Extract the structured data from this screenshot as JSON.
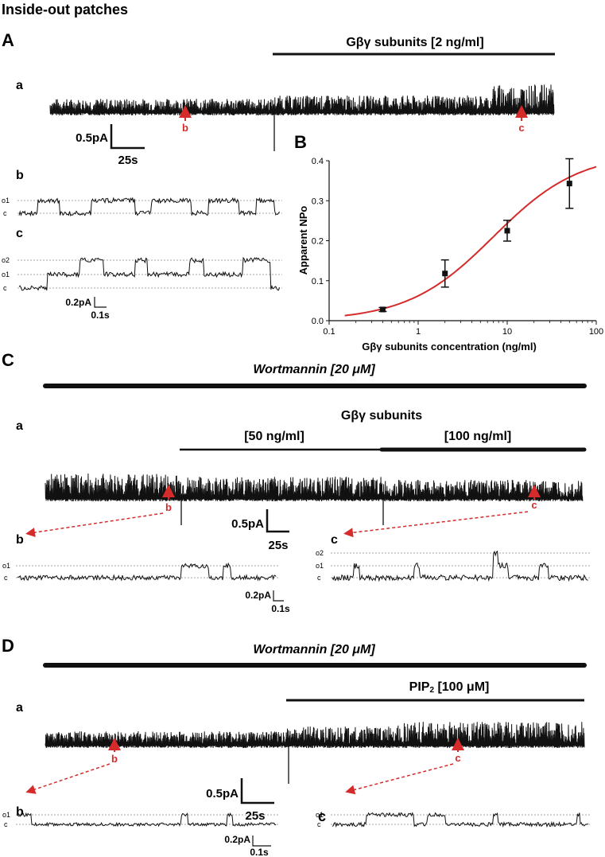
{
  "figure_title": "Inside-out patches",
  "panelA": {
    "label": "A",
    "bar_label": "Gβγ subunits [2 ng/ml]",
    "row_a": "a",
    "row_b": "b",
    "row_c": "c",
    "marker_b": "b",
    "marker_c": "c",
    "scale_current": "0.5pA",
    "scale_time": "25s",
    "small_scale_current": "0.2pA",
    "small_scale_time": "0.1s",
    "levels_b": [
      "o1",
      "c"
    ],
    "levels_c": [
      "o2",
      "o1",
      "c"
    ]
  },
  "panelB": {
    "label": "B",
    "chart_data": {
      "type": "scatter",
      "title": "",
      "xlabel": "Gβγ subunits concentration (ng/ml)",
      "ylabel": "Apparent NPo",
      "xscale": "log",
      "xlim": [
        0.1,
        100
      ],
      "ylim": [
        0,
        0.4
      ],
      "x_ticks": [
        "0.1",
        "1",
        "10",
        "100"
      ],
      "y_ticks": [
        "0.0",
        "0.1",
        "0.2",
        "0.3",
        "0.4"
      ],
      "points": [
        {
          "x": 0.4,
          "y": 0.028,
          "err": 0.005
        },
        {
          "x": 2,
          "y": 0.118,
          "err": 0.034
        },
        {
          "x": 10,
          "y": 0.225,
          "err": 0.026
        },
        {
          "x": 50,
          "y": 0.343,
          "err": 0.062
        }
      ],
      "fit": {
        "type": "hill",
        "max": 0.42,
        "ec50": 7,
        "n": 0.9,
        "color": "#d62b2b"
      }
    }
  },
  "panelC": {
    "label": "C",
    "top_bar_label": "Wortmannin [20 μM]",
    "gbg_label": "Gβγ subunits",
    "conc1_label": "[50 ng/ml]",
    "conc2_label": "[100 ng/ml]",
    "row_a": "a",
    "row_b": "b",
    "row_c": "c",
    "marker_b": "b",
    "marker_c": "c",
    "scale_current": "0.5pA",
    "scale_time": "25s",
    "small_scale_current": "0.2pA",
    "small_scale_time": "0.1s",
    "levels_b": [
      "o1",
      "c"
    ],
    "levels_c": [
      "o2",
      "o1",
      "c"
    ]
  },
  "panelD": {
    "label": "D",
    "top_bar_label": "Wortmannin [20 μM]",
    "pip2_label": "PIP",
    "pip2_sub": "2",
    "pip2_conc": " [100 μM]",
    "row_a": "a",
    "row_b": "b",
    "row_c": "c",
    "marker_b": "b",
    "marker_c": "c",
    "scale_current": "0.5pA",
    "scale_time": "25s",
    "small_scale_current": "0.2pA",
    "small_scale_time": "0.1s",
    "levels_b": [
      "o1",
      "c"
    ],
    "levels_c": [
      "o1",
      "c"
    ]
  },
  "colors": {
    "accent": "#d62b2b",
    "trace": "#111111",
    "dotted": "#888888"
  }
}
